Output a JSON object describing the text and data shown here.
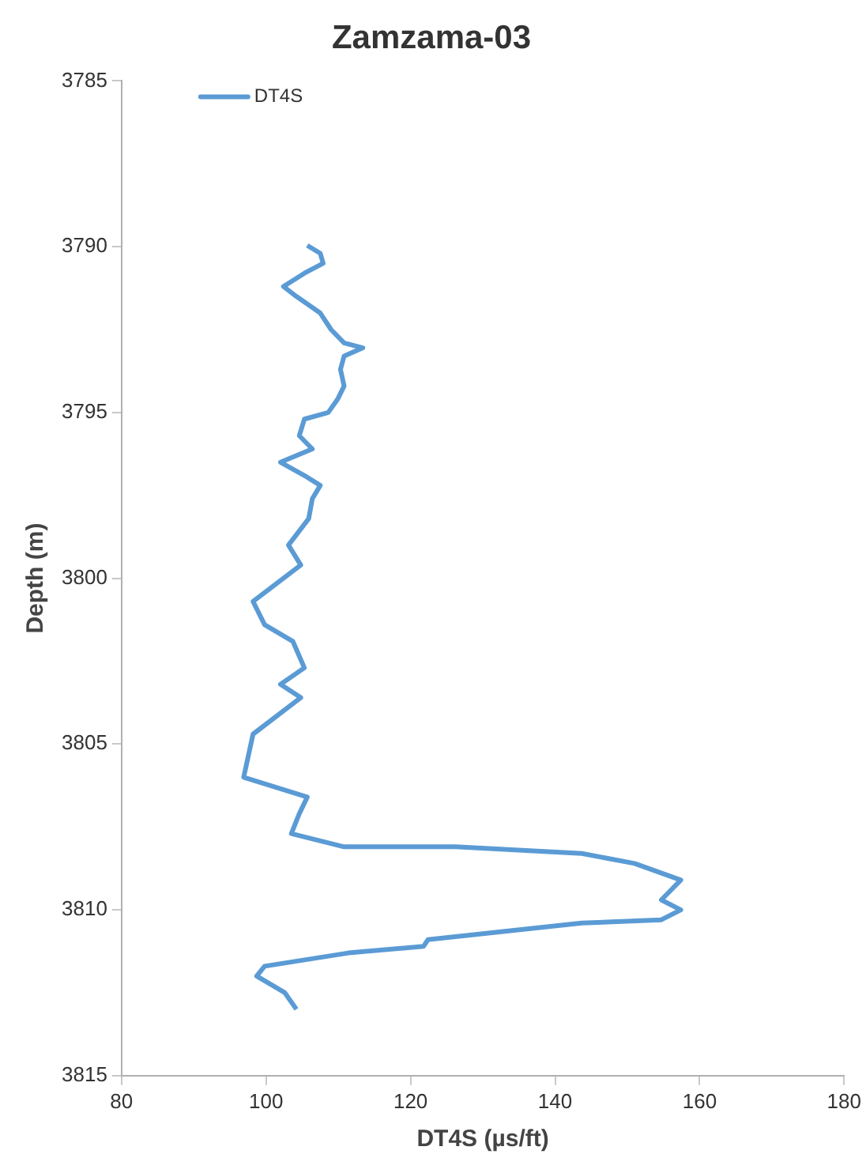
{
  "chart_data": {
    "type": "line",
    "title": "Zamzama-03",
    "xlabel": "DT4S (µs/ft)",
    "ylabel": "Depth (m)",
    "xlim": [
      80,
      180
    ],
    "xticks": [
      80,
      100,
      120,
      140,
      160,
      180
    ],
    "ylim": [
      3815,
      3785
    ],
    "yticks": [
      3785,
      3790,
      3795,
      3800,
      3805,
      3810,
      3815
    ],
    "grid": false,
    "legend": "top left",
    "marker": "none",
    "line_style": "solid",
    "series": [
      {
        "name": "DT4S",
        "color": "#5b9bd5",
        "x": [
          105.7,
          107.5,
          107.9,
          105.3,
          102.4,
          104.2,
          107.5,
          109.0,
          110.8,
          113.4,
          110.8,
          110.3,
          110.8,
          109.9,
          108.6,
          105.3,
          104.6,
          106.4,
          102.0,
          105.3,
          107.5,
          106.4,
          105.9,
          103.1,
          104.8,
          98.2,
          99.8,
          103.7,
          105.3,
          102.0,
          104.8,
          98.2,
          96.9,
          105.7,
          104.6,
          103.5,
          110.8,
          126.2,
          143.7,
          151.0,
          157.4,
          154.7,
          157.4,
          154.7,
          143.7,
          122.4,
          121.8,
          111.4,
          99.8,
          98.7,
          102.6,
          104.2
        ],
        "values": [
          3789.96,
          3790.2,
          3790.5,
          3790.8,
          3791.2,
          3791.5,
          3792.0,
          3792.5,
          3792.9,
          3793.05,
          3793.3,
          3793.7,
          3794.2,
          3794.6,
          3795.0,
          3795.2,
          3795.7,
          3796.1,
          3796.5,
          3796.9,
          3797.2,
          3797.6,
          3798.2,
          3799.0,
          3799.6,
          3800.7,
          3801.4,
          3801.9,
          3802.7,
          3803.2,
          3803.6,
          3804.7,
          3806.0,
          3806.6,
          3807.1,
          3807.7,
          3808.1,
          3808.1,
          3808.3,
          3808.6,
          3809.1,
          3809.7,
          3810.0,
          3810.3,
          3810.4,
          3810.9,
          3811.1,
          3811.3,
          3811.7,
          3812.0,
          3812.5,
          3813.0
        ]
      }
    ]
  }
}
